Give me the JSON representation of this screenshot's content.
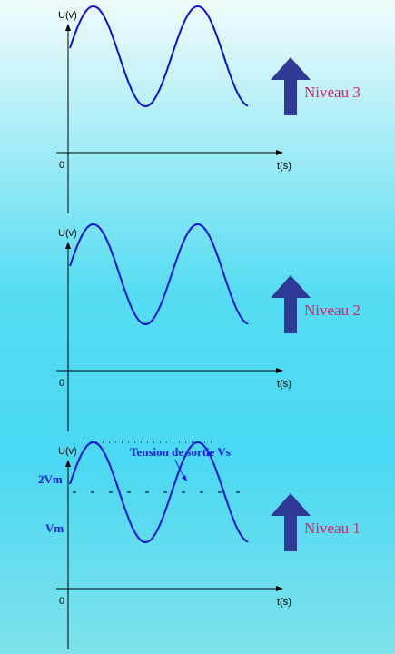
{
  "panels": [
    {
      "y_axis_label": "U(v)",
      "origin": "0",
      "x_axis_label": "t(s)",
      "level_label": "Niveau 3"
    },
    {
      "y_axis_label": "U(v)",
      "origin": "0",
      "x_axis_label": "t(s)",
      "level_label": "Niveau 2"
    },
    {
      "y_axis_label": "U(v)",
      "origin": "0",
      "x_axis_label": "t(s)",
      "level_label": "Niveau 1",
      "annotation": "Tension de sortie  Vs",
      "peak_label": "2Vm",
      "mid_label": "Vm"
    }
  ]
}
